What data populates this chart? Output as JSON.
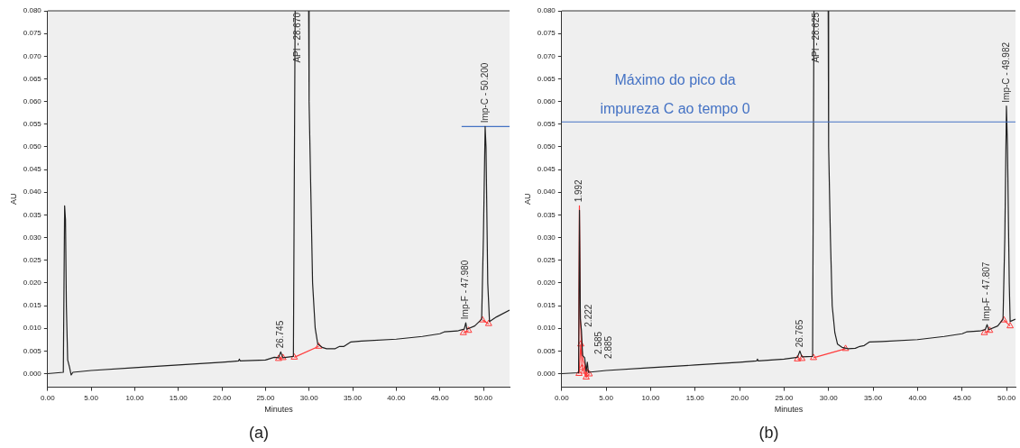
{
  "chart_data": [
    {
      "type": "line",
      "xlabel": "Minutes",
      "ylabel": "AU",
      "xlim": [
        0,
        53
      ],
      "ylim": [
        -0.003,
        0.08
      ],
      "xticks": [
        {
          "value": 0,
          "label": "0.00"
        },
        {
          "value": 5,
          "label": "5.00"
        },
        {
          "value": 10,
          "label": "10.00"
        },
        {
          "value": 15,
          "label": "15.00"
        },
        {
          "value": 20,
          "label": "20.00"
        },
        {
          "value": 25,
          "label": "25.00"
        },
        {
          "value": 30,
          "label": "30.00"
        },
        {
          "value": 35,
          "label": "35.00"
        },
        {
          "value": 40,
          "label": "40.00"
        },
        {
          "value": 45,
          "label": "45.00"
        },
        {
          "value": 50,
          "label": "50.00"
        }
      ],
      "yticks": [
        {
          "value": 0,
          "label": "0.000"
        },
        {
          "value": 0.005,
          "label": "0.005"
        },
        {
          "value": 0.01,
          "label": "0.010"
        },
        {
          "value": 0.015,
          "label": "0.015"
        },
        {
          "value": 0.02,
          "label": "0.020"
        },
        {
          "value": 0.025,
          "label": "0.025"
        },
        {
          "value": 0.03,
          "label": "0.030"
        },
        {
          "value": 0.035,
          "label": "0.035"
        },
        {
          "value": 0.04,
          "label": "0.040"
        },
        {
          "value": 0.045,
          "label": "0.045"
        },
        {
          "value": 0.05,
          "label": "0.050"
        },
        {
          "value": 0.055,
          "label": "0.055"
        },
        {
          "value": 0.06,
          "label": "0.060"
        },
        {
          "value": 0.065,
          "label": "0.065"
        },
        {
          "value": 0.07,
          "label": "0.070"
        },
        {
          "value": 0.075,
          "label": "0.075"
        },
        {
          "value": 0.08,
          "label": "0.080"
        }
      ],
      "series": [
        {
          "color": "#202020",
          "x": [
            0,
            1.8,
            1.95,
            2.05,
            2.15,
            2.3,
            2.5,
            2.7,
            2.9,
            5,
            10,
            15,
            20,
            21.9,
            22,
            22.1,
            25,
            26,
            26.5,
            26.745,
            27,
            28.2,
            28.4,
            28.45,
            29.95,
            30,
            30.2,
            30.4,
            30.7,
            31,
            31.5,
            32,
            33,
            33.5,
            34,
            34.8,
            36,
            40,
            43,
            45,
            45.5,
            47,
            47.8,
            47.98,
            48.1,
            49,
            49.8,
            50,
            50.2,
            50.3,
            50.5,
            50.7,
            51.5,
            53
          ],
          "values": [
            0,
            0.0003,
            0.037,
            0.034,
            0.015,
            0.003,
            0.0015,
            -0.0003,
            0.0003,
            0.0007,
            0.0013,
            0.0019,
            0.0025,
            0.0028,
            0.0032,
            0.0028,
            0.003,
            0.0036,
            0.0035,
            0.0048,
            0.0035,
            0.0038,
            0.08,
            null,
            0.08,
            0.06,
            0.04,
            0.02,
            0.01,
            0.0065,
            0.0058,
            0.0055,
            0.0055,
            0.006,
            0.006,
            0.007,
            0.0072,
            0.0076,
            0.0082,
            0.0088,
            0.0092,
            0.0094,
            0.0098,
            0.0112,
            0.0098,
            0.0105,
            0.012,
            0.03,
            0.0545,
            0.05,
            0.02,
            0.0115,
            0.0125,
            0.014
          ]
        },
        {
          "color": "#ff3b3b",
          "marker": "triangle",
          "x": [
            26.5,
            27,
            27.05,
            28.3,
            31.1,
            31.15,
            47.7,
            48.3,
            48.35,
            49.9,
            50.6
          ],
          "values": [
            0.0033,
            0.0035,
            null,
            0.0036,
            0.006,
            null,
            0.009,
            0.0095,
            null,
            0.0118,
            0.011
          ]
        },
        {
          "color": "#4472c4",
          "x": [
            47.5,
            53
          ],
          "values": [
            0.0545,
            0.0545
          ]
        }
      ],
      "annotations": [
        {
          "text": "26.745",
          "x": 26.745,
          "y": 0.0048
        },
        {
          "text": "API - 28.670",
          "x": 28.67,
          "y": 0.08
        },
        {
          "text": "Imp-F - 47.980",
          "x": 47.98,
          "y": 0.0112
        },
        {
          "text": "Imp-C - 50.200",
          "x": 50.2,
          "y": 0.0545
        },
        "(a)"
      ],
      "legend": false
    },
    {
      "type": "line",
      "xlabel": "Minutes",
      "ylabel": "AU",
      "xlim": [
        0,
        51
      ],
      "ylim": [
        -0.003,
        0.08
      ],
      "xticks": [
        {
          "value": 0,
          "label": "0.00"
        },
        {
          "value": 5,
          "label": "5.00"
        },
        {
          "value": 10,
          "label": "10.00"
        },
        {
          "value": 15,
          "label": "15.00"
        },
        {
          "value": 20,
          "label": "20.00"
        },
        {
          "value": 25,
          "label": "25.00"
        },
        {
          "value": 30,
          "label": "30.00"
        },
        {
          "value": 35,
          "label": "35.00"
        },
        {
          "value": 40,
          "label": "40.00"
        },
        {
          "value": 45,
          "label": "45.00"
        },
        {
          "value": 50,
          "label": "50.00"
        }
      ],
      "yticks": [
        {
          "value": 0,
          "label": "0.000"
        },
        {
          "value": 0.005,
          "label": "0.005"
        },
        {
          "value": 0.01,
          "label": "0.010"
        },
        {
          "value": 0.015,
          "label": "0.015"
        },
        {
          "value": 0.02,
          "label": "0.020"
        },
        {
          "value": 0.025,
          "label": "0.025"
        },
        {
          "value": 0.03,
          "label": "0.030"
        },
        {
          "value": 0.035,
          "label": "0.035"
        },
        {
          "value": 0.04,
          "label": "0.040"
        },
        {
          "value": 0.045,
          "label": "0.045"
        },
        {
          "value": 0.05,
          "label": "0.050"
        },
        {
          "value": 0.055,
          "label": "0.055"
        },
        {
          "value": 0.06,
          "label": "0.060"
        },
        {
          "value": 0.065,
          "label": "0.065"
        },
        {
          "value": 0.07,
          "label": "0.070"
        },
        {
          "value": 0.075,
          "label": "0.075"
        },
        {
          "value": 0.08,
          "label": "0.080"
        }
      ],
      "series": [
        {
          "color": "#202020",
          "x": [
            0,
            1.9,
            2,
            2.1,
            2.222,
            2.35,
            2.585,
            2.75,
            2.885,
            3,
            5,
            10,
            15,
            20,
            21.9,
            22,
            22.1,
            25,
            26.5,
            26.765,
            27,
            28.2,
            28.35,
            28.4,
            29.95,
            30,
            30.2,
            30.4,
            30.7,
            31,
            31.5,
            32.2,
            33,
            33.5,
            34,
            34.6,
            36,
            40,
            43,
            45,
            45.5,
            47,
            47.6,
            47.807,
            48,
            49,
            49.6,
            49.8,
            49.982,
            50.1,
            50.3,
            50.4,
            51
          ],
          "values": [
            0,
            0.0002,
            0.036,
            0.012,
            0.0095,
            0.004,
            0.0035,
            0.0005,
            0.0025,
            0.0003,
            0.0007,
            0.0013,
            0.0019,
            0.0025,
            0.0028,
            0.0032,
            0.0028,
            0.0032,
            0.0036,
            0.005,
            0.0037,
            0.0038,
            0.08,
            null,
            0.08,
            0.05,
            0.03,
            0.015,
            0.009,
            0.0065,
            0.0058,
            0.0055,
            0.0056,
            0.006,
            0.0062,
            0.007,
            0.0071,
            0.0075,
            0.0082,
            0.0088,
            0.0092,
            0.0094,
            0.0097,
            0.0108,
            0.0097,
            0.0105,
            0.012,
            0.03,
            0.059,
            0.05,
            0.02,
            0.0115,
            0.012
          ]
        },
        {
          "color": "#ff3b3b",
          "x": [
            1.9,
            1.992,
            2.1,
            2.222,
            2.4,
            2.585,
            2.7,
            2.885,
            3.1
          ],
          "values": [
            0,
            0.037,
            0.012,
            0.0065,
            0.003,
            0.002,
            -0.0005,
            0.001,
            0
          ]
        },
        {
          "color": "#ff3b3b",
          "marker": "triangle",
          "x": [
            1.95,
            2.15,
            2.3,
            2.5,
            2.75,
            3.1,
            3.15,
            26.5,
            27,
            27.05,
            28.3,
            31.9,
            31.95,
            47.5,
            48.1,
            48.15,
            49.7,
            50.4
          ],
          "values": [
            0,
            0.0065,
            0.0013,
            0.0005,
            -0.0008,
            -0.0001,
            null,
            0.0032,
            0.0033,
            null,
            0.0035,
            0.0055,
            null,
            0.009,
            0.0095,
            null,
            0.0118,
            0.0105
          ]
        }
      ],
      "ref_lines": [
        {
          "axis": "y",
          "value": 0.0555,
          "label": "Máximo do pico da impureza C ao tempo 0",
          "color": "#4472c4"
        }
      ],
      "annotations": [
        {
          "text": "1.992",
          "x": 1.992,
          "y": 0.037
        },
        {
          "text": "2.222",
          "x": 2.222,
          "y": 0.0095
        },
        {
          "text": "2.585",
          "x": 2.585,
          "y": 0.0035
        },
        {
          "text": "2.885",
          "x": 2.885,
          "y": 0.0025
        },
        {
          "text": "26.765",
          "x": 26.765,
          "y": 0.005
        },
        {
          "text": "API - 28.625",
          "x": 28.625,
          "y": 0.08
        },
        {
          "text": "Imp-F - 47.807",
          "x": 47.807,
          "y": 0.0108
        },
        {
          "text": "Imp-C - 49.982",
          "x": 49.982,
          "y": 0.059
        },
        "(b)"
      ],
      "legend": false
    }
  ]
}
